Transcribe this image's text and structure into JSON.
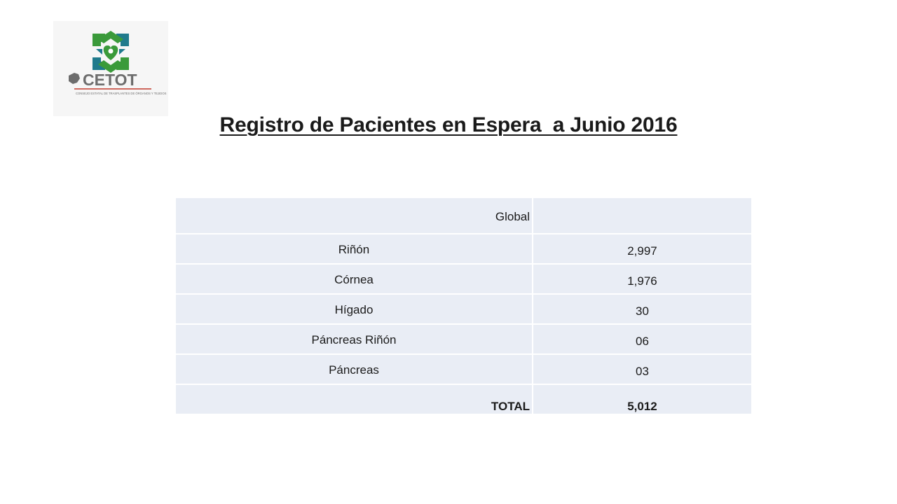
{
  "logo": {
    "name": "CETOT",
    "subtitle": "CONSEJO ESTATAL DE TRASPLANTES DE ÓRGANOS Y TEJIDOS",
    "colors": {
      "green": "#3a9a3a",
      "teal": "#1f7a8c",
      "grey": "#6d6d6d",
      "red": "#c0392b"
    }
  },
  "title": "Registro de Pacientes en Espera  a Junio 2016",
  "table": {
    "header_label": "Global",
    "header_value": "",
    "rows": [
      {
        "organ": "Riñón",
        "count": "2,997"
      },
      {
        "organ": "Córnea",
        "count": "1,976"
      },
      {
        "organ": "Hígado",
        "count": "30"
      },
      {
        "organ": "Páncreas Riñón",
        "count": "06"
      },
      {
        "organ": "Páncreas",
        "count": "03"
      }
    ],
    "total_label": "TOTAL",
    "total_value": "5,012"
  },
  "colors": {
    "cell_background": "#e9edf5",
    "text": "#1a1a1a"
  }
}
